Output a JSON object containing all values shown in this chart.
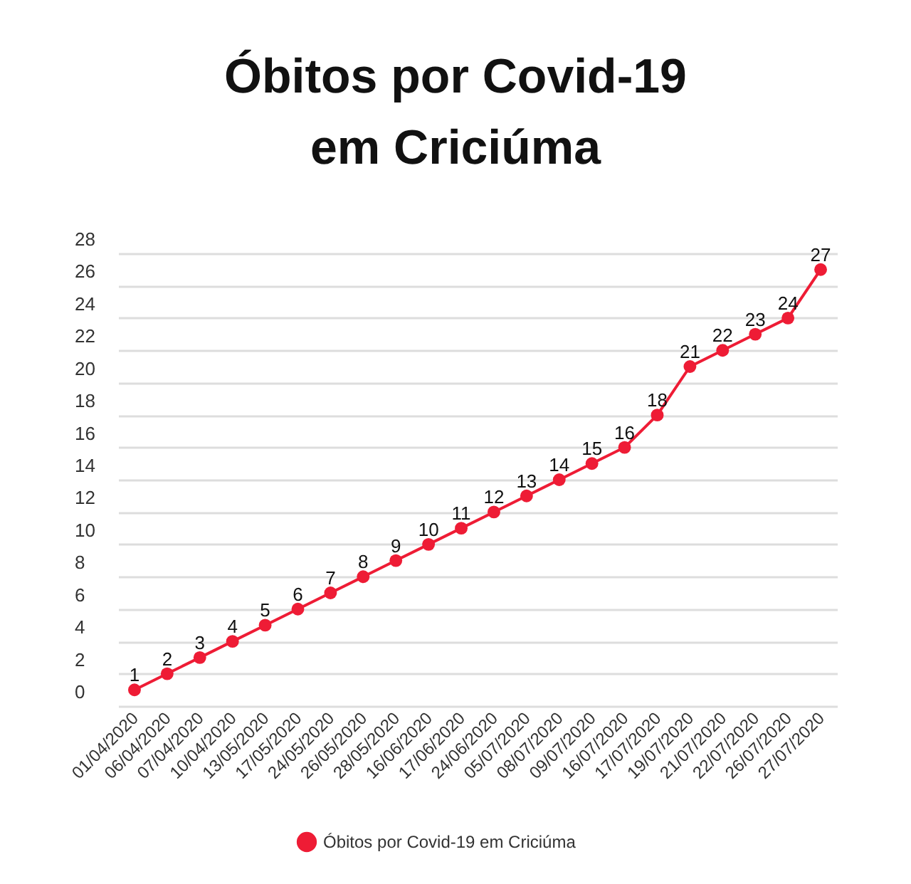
{
  "chart_data": {
    "type": "line",
    "title": "Óbitos por Covid-19\nem Criciúma",
    "categories": [
      "01/04/2020",
      "06/04/2020",
      "07/04/2020",
      "10/04/2020",
      "13/05/2020",
      "17/05/2020",
      "24/05/2020",
      "26/05/2020",
      "28/05/2020",
      "16/06/2020",
      "17/06/2020",
      "24/06/2020",
      "05/07/2020",
      "08/07/2020",
      "09/07/2020",
      "16/07/2020",
      "17/07/2020",
      "19/07/2020",
      "21/07/2020",
      "22/07/2020",
      "26/07/2020",
      "27/07/2020"
    ],
    "series": [
      {
        "name": "Óbitos por Covid-19 em Criciúma",
        "color": "#ee1c35",
        "values": [
          1,
          2,
          3,
          4,
          5,
          6,
          7,
          8,
          9,
          10,
          11,
          12,
          13,
          14,
          15,
          16,
          18,
          21,
          22,
          23,
          24,
          27
        ]
      }
    ],
    "ylim": [
      0,
      28
    ],
    "yticks": [
      0,
      2,
      4,
      6,
      8,
      10,
      12,
      14,
      16,
      18,
      20,
      22,
      24,
      26,
      28
    ],
    "grid": "y",
    "legend": "bottom",
    "marker": "circle",
    "line_style": "solid",
    "data_labels": true
  }
}
